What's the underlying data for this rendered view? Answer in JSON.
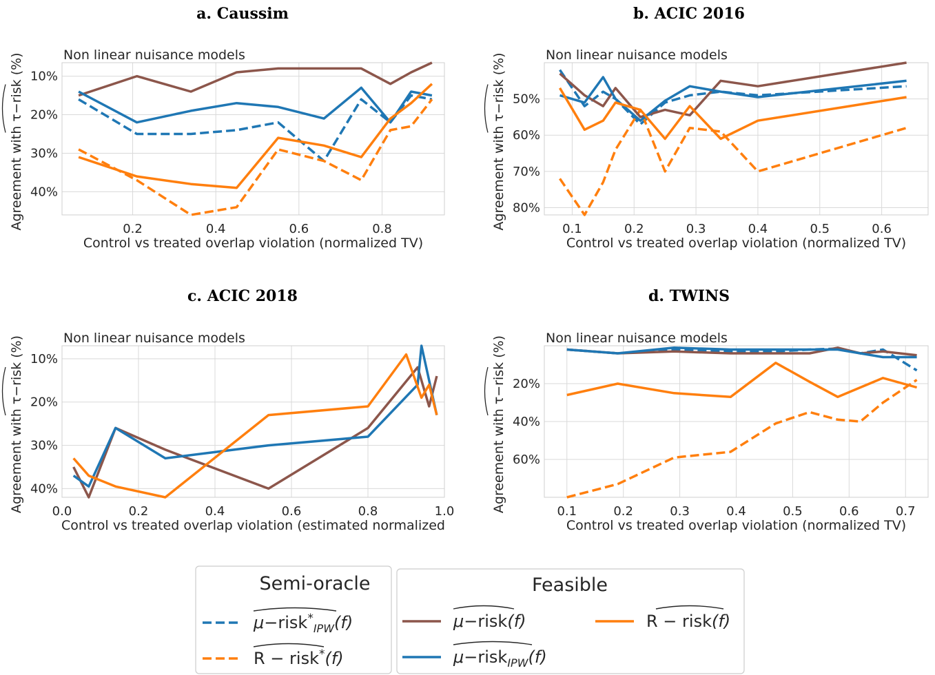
{
  "colors": {
    "blue": "#1f77b4",
    "orange": "#ff7f0e",
    "brown": "#8c564b",
    "grid": "#d9d9d9"
  },
  "legend": {
    "semi_oracle_title": "Semi-oracle",
    "feasible_title": "Feasible",
    "items": [
      {
        "key": "mu_risk_ipw_star",
        "color": "#1f77b4",
        "dash": true,
        "label": "μ−risk*_IPW(f)"
      },
      {
        "key": "r_risk_star",
        "color": "#ff7f0e",
        "dash": true,
        "label": "R − risk*(f)"
      },
      {
        "key": "mu_risk",
        "color": "#8c564b",
        "dash": false,
        "label": "μ−risk(f)"
      },
      {
        "key": "mu_risk_ipw",
        "color": "#1f77b4",
        "dash": false,
        "label": "μ−risk_IPW(f)"
      },
      {
        "key": "r_risk",
        "color": "#ff7f0e",
        "dash": false,
        "label": "R − risk(f)"
      }
    ]
  },
  "chart_data": [
    {
      "type": "line",
      "title": "a. Caussim",
      "annotation": "Non linear nuisance models",
      "xlabel": "Control vs treated overlap violation (normalized TV)",
      "ylabel": "Agreement with τ−risk (%)",
      "xlim": [
        0.03,
        0.95
      ],
      "xticks": [
        0.2,
        0.4,
        0.6,
        0.8
      ],
      "ylim": [
        46,
        6.5
      ],
      "yticks": [
        10,
        20,
        30,
        40
      ],
      "ytick_labels": [
        "10%",
        "20%",
        "30%",
        "40%"
      ],
      "series": [
        {
          "key": "mu_risk_ipw_star",
          "x": [
            0.07,
            0.21,
            0.34,
            0.45,
            0.55,
            0.66,
            0.75,
            0.82,
            0.87,
            0.92
          ],
          "y": [
            16,
            25,
            25,
            24,
            22,
            32,
            16,
            22,
            15,
            16
          ]
        },
        {
          "key": "r_risk_star",
          "x": [
            0.07,
            0.21,
            0.34,
            0.45,
            0.55,
            0.66,
            0.75,
            0.82,
            0.87,
            0.92
          ],
          "y": [
            29,
            37,
            46,
            44,
            29,
            32,
            37,
            24,
            23,
            16
          ]
        },
        {
          "key": "mu_risk",
          "x": [
            0.07,
            0.21,
            0.34,
            0.45,
            0.55,
            0.66,
            0.75,
            0.82,
            0.87,
            0.92
          ],
          "y": [
            15,
            10,
            14,
            9,
            8,
            8,
            8,
            12,
            9,
            6.5
          ]
        },
        {
          "key": "mu_risk_ipw",
          "x": [
            0.07,
            0.21,
            0.34,
            0.45,
            0.55,
            0.66,
            0.75,
            0.82,
            0.87,
            0.92
          ],
          "y": [
            14,
            22,
            19,
            17,
            18,
            21,
            13,
            22,
            14,
            15
          ]
        },
        {
          "key": "r_risk",
          "x": [
            0.07,
            0.21,
            0.34,
            0.45,
            0.55,
            0.66,
            0.75,
            0.82,
            0.87,
            0.92
          ],
          "y": [
            31,
            36,
            38,
            39,
            26,
            28,
            31,
            21,
            17,
            12
          ]
        }
      ]
    },
    {
      "type": "line",
      "title": "b. ACIC 2016",
      "annotation": "Non linear nuisance models",
      "xlabel": "Control vs treated overlap violation (normalized TV)",
      "ylabel": "Agreement with τ−risk (%)",
      "xlim": [
        0.055,
        0.675
      ],
      "xticks": [
        0.1,
        0.2,
        0.3,
        0.4,
        0.5,
        0.6
      ],
      "ylim": [
        82,
        40
      ],
      "yticks": [
        50,
        60,
        70,
        80
      ],
      "ytick_labels": [
        "50%",
        "60%",
        "70%",
        "80%"
      ],
      "series": [
        {
          "key": "mu_risk_ipw_star",
          "x": [
            0.08,
            0.12,
            0.15,
            0.17,
            0.21,
            0.25,
            0.29,
            0.34,
            0.4,
            0.64
          ],
          "y": [
            42,
            52,
            48,
            50,
            57,
            51,
            49,
            48,
            49,
            46.5
          ]
        },
        {
          "key": "r_risk_star",
          "x": [
            0.08,
            0.12,
            0.15,
            0.17,
            0.21,
            0.25,
            0.29,
            0.34,
            0.4,
            0.64
          ],
          "y": [
            72,
            82,
            73,
            64,
            53,
            70,
            58,
            59,
            70,
            58
          ]
        },
        {
          "key": "mu_risk",
          "x": [
            0.08,
            0.12,
            0.15,
            0.17,
            0.21,
            0.25,
            0.29,
            0.34,
            0.4,
            0.64
          ],
          "y": [
            43,
            49,
            52,
            47,
            55,
            53,
            54.5,
            45,
            46.5,
            40
          ]
        },
        {
          "key": "mu_risk_ipw",
          "x": [
            0.08,
            0.12,
            0.15,
            0.17,
            0.21,
            0.25,
            0.29,
            0.34,
            0.4,
            0.64
          ],
          "y": [
            49,
            51,
            44,
            50,
            56,
            50.5,
            46.5,
            48,
            49.5,
            45
          ]
        },
        {
          "key": "r_risk",
          "x": [
            0.08,
            0.12,
            0.15,
            0.17,
            0.21,
            0.25,
            0.29,
            0.34,
            0.4,
            0.64
          ],
          "y": [
            47,
            58.5,
            56,
            51,
            53,
            61,
            52,
            61,
            56,
            49.5
          ]
        }
      ]
    },
    {
      "type": "line",
      "title": "c. ACIC 2018",
      "annotation": "Non linear nuisance models",
      "xlabel": "Control vs treated overlap violation (estimated normalized",
      "ylabel": "Agreement with τ−risk (%)",
      "xlim": [
        0.0,
        1.0
      ],
      "xticks": [
        0.0,
        0.2,
        0.4,
        0.6,
        0.8,
        1.0
      ],
      "ylim": [
        42,
        7
      ],
      "yticks": [
        10,
        20,
        30,
        40
      ],
      "ytick_labels": [
        "10%",
        "20%",
        "30%",
        "40%"
      ],
      "series": [
        {
          "key": "mu_risk",
          "x": [
            0.03,
            0.07,
            0.14,
            0.27,
            0.54,
            0.8,
            0.93,
            0.96,
            0.98
          ],
          "y": [
            35,
            42,
            26,
            31,
            40,
            26,
            12,
            21,
            14
          ]
        },
        {
          "key": "mu_risk_ipw",
          "x": [
            0.03,
            0.07,
            0.14,
            0.27,
            0.54,
            0.8,
            0.93,
            0.94,
            0.98
          ],
          "y": [
            37,
            39.5,
            26,
            33,
            30,
            28,
            16,
            7,
            23
          ]
        },
        {
          "key": "r_risk",
          "x": [
            0.03,
            0.07,
            0.14,
            0.27,
            0.54,
            0.8,
            0.9,
            0.94,
            0.96,
            0.98
          ],
          "y": [
            33,
            37,
            39.5,
            42,
            23,
            21,
            9,
            19,
            16,
            23
          ]
        }
      ]
    },
    {
      "type": "line",
      "title": "d. TWINS",
      "annotation": "Non linear nuisance models",
      "xlabel": "Control vs treated overlap violation (normalized TV)",
      "ylabel": "Agreement with τ−risk (%)",
      "xlim": [
        0.06,
        0.74
      ],
      "xticks": [
        0.1,
        0.2,
        0.3,
        0.4,
        0.5,
        0.6,
        0.7
      ],
      "ylim": [
        80,
        0
      ],
      "yticks": [
        20,
        40,
        60
      ],
      "ytick_labels": [
        "20%",
        "40%",
        "60%"
      ],
      "series": [
        {
          "key": "mu_risk_ipw_star",
          "x": [
            0.1,
            0.19,
            0.29,
            0.39,
            0.47,
            0.53,
            0.58,
            0.62,
            0.66,
            0.72
          ],
          "y": [
            2,
            4,
            2,
            3,
            3,
            2,
            1.5,
            4,
            2,
            13
          ]
        },
        {
          "key": "r_risk_star",
          "x": [
            0.1,
            0.19,
            0.29,
            0.39,
            0.47,
            0.53,
            0.58,
            0.62,
            0.66,
            0.72
          ],
          "y": [
            80,
            73,
            59,
            56,
            41,
            35,
            39,
            40,
            30,
            18
          ]
        },
        {
          "key": "mu_risk",
          "x": [
            0.1,
            0.19,
            0.29,
            0.39,
            0.47,
            0.53,
            0.58,
            0.62,
            0.66,
            0.72
          ],
          "y": [
            2,
            4,
            3,
            4,
            4,
            4,
            1,
            4,
            3,
            5
          ]
        },
        {
          "key": "mu_risk_ipw",
          "x": [
            0.1,
            0.19,
            0.29,
            0.39,
            0.47,
            0.53,
            0.58,
            0.62,
            0.66,
            0.72
          ],
          "y": [
            2,
            4,
            1,
            2,
            2,
            2,
            2,
            4,
            6,
            6
          ]
        },
        {
          "key": "r_risk",
          "x": [
            0.1,
            0.19,
            0.29,
            0.39,
            0.47,
            0.53,
            0.58,
            0.62,
            0.66,
            0.72
          ],
          "y": [
            26,
            20,
            25,
            27,
            9,
            19,
            27,
            22,
            17,
            22
          ]
        }
      ]
    }
  ]
}
